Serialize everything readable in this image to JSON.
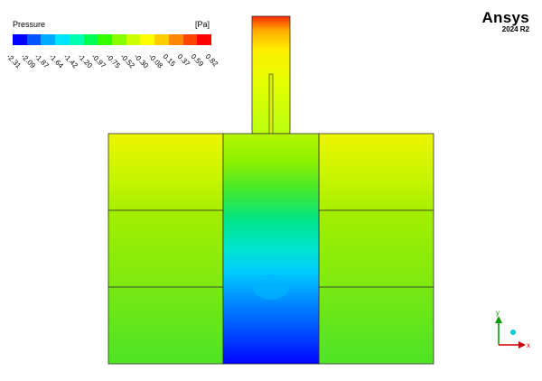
{
  "legend": {
    "title": "Pressure",
    "unit": "[Pa]",
    "ticks": [
      "-2.31",
      "-2.09",
      "-1.87",
      "-1.64",
      "-1.42",
      "-1.20",
      "-0.97",
      "-0.75",
      "-0.52",
      "-0.30",
      "-0.08",
      "0.15",
      "0.37",
      "0.59",
      "0.82"
    ],
    "colors": [
      "#0000ff",
      "#0055ff",
      "#00aaff",
      "#00e5ff",
      "#00ffb0",
      "#00ff55",
      "#33ff00",
      "#88ff00",
      "#ccff00",
      "#ffff00",
      "#ffcc00",
      "#ff8800",
      "#ff4400",
      "#ff0000"
    ]
  },
  "branding": {
    "name": "Ansys",
    "version": "2024 R2"
  },
  "axes_triad": {
    "x_label": "x",
    "y_label": "y",
    "x_color": "#cc0000",
    "y_color": "#009900",
    "z_color": "#00cccc"
  },
  "contour": {
    "field": "Pressure",
    "regions": [
      "inlet-channel",
      "left-block-top",
      "left-block-middle",
      "left-block-bottom",
      "center-column",
      "right-block-top",
      "right-block-middle",
      "right-block-bottom"
    ]
  }
}
